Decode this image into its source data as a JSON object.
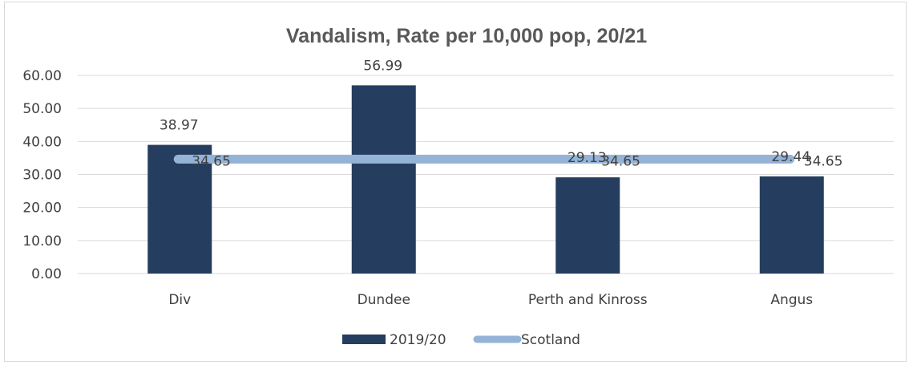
{
  "chart_data": {
    "type": "bar",
    "title": "Vandalism, Rate per 10,000 pop, 20/21",
    "categories": [
      "Div",
      "Dundee",
      "Perth and Kinross",
      "Angus"
    ],
    "y_tick_labels": [
      "0.00",
      "10.00",
      "20.00",
      "30.00",
      "40.00",
      "50.00",
      "60.00"
    ],
    "ylim": [
      0,
      60
    ],
    "grid": true,
    "legend_position": "bottom",
    "series": [
      {
        "name": "2019/20",
        "type": "bar",
        "color": "#253d5e",
        "values": [
          38.97,
          56.99,
          29.13,
          29.44
        ],
        "labels": [
          "38.97",
          "56.99",
          "29.13",
          "29.44"
        ]
      },
      {
        "name": "Scotland",
        "type": "line",
        "color": "#95b3d7",
        "values": [
          34.65,
          34.65,
          34.65,
          34.65
        ],
        "labels": [
          "34.65",
          "",
          "34.65",
          "34.65"
        ]
      }
    ]
  }
}
